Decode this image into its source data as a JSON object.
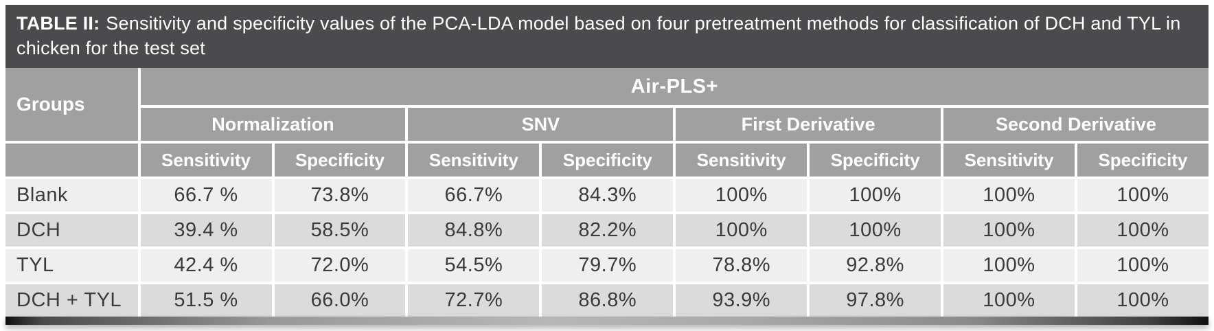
{
  "caption": {
    "label": "TABLE II:",
    "text": "Sensitivity and specificity values of the PCA-LDA model based on four pretreatment methods for classification of DCH and TYL in chicken for the test set"
  },
  "table": {
    "groups_header": "Groups",
    "span_header": "Air-PLS+",
    "method_headers": [
      "Normalization",
      "SNV",
      "First Derivative",
      "Second Derivative"
    ],
    "metric_headers": [
      "Sensitivity",
      "Specificity",
      "Sensitivity",
      "Specificity",
      "Sensitivity",
      "Specificity",
      "Sensitivity",
      "Specificity"
    ],
    "rows": [
      {
        "group": "Blank",
        "values": [
          "66.7 %",
          "73.8%",
          "66.7%",
          "84.3%",
          "100%",
          "100%",
          "100%",
          "100%"
        ]
      },
      {
        "group": "DCH",
        "values": [
          "39.4 %",
          "58.5%",
          "84.8%",
          "82.2%",
          "100%",
          "100%",
          "100%",
          "100%"
        ]
      },
      {
        "group": "TYL",
        "values": [
          "42.4 %",
          "72.0%",
          "54.5%",
          "79.7%",
          "78.8%",
          "92.8%",
          "100%",
          "100%"
        ]
      },
      {
        "group": "DCH + TYL",
        "values": [
          "51.5 %",
          "66.0%",
          "72.7%",
          "86.8%",
          "93.9%",
          "97.8%",
          "100%",
          "100%"
        ]
      }
    ]
  },
  "colors": {
    "title_bar": "#4b4b4d",
    "header_gray": "#a0a0a1",
    "row_light": "#efeff0",
    "row_dark": "#dbdbdc",
    "data_text": "#3b3b3b"
  }
}
